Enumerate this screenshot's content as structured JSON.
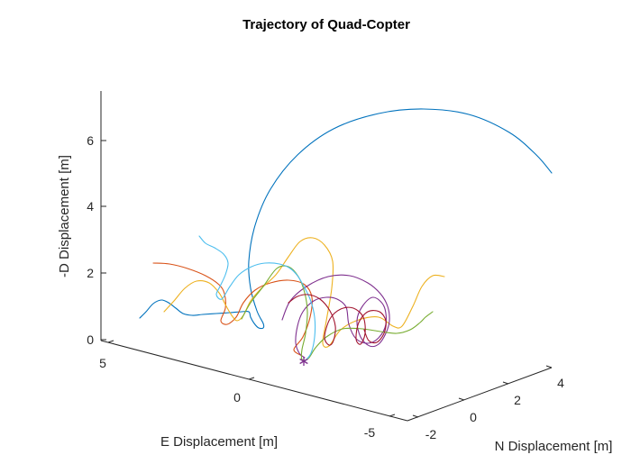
{
  "chart_data": {
    "type": "line3d",
    "title": "Trajectory of Quad-Copter",
    "xlabel": "E Displacement [m]",
    "ylabel": "N Displacement [m]",
    "zlabel": "-D Displacement [m]",
    "x_ticks": [
      "5",
      "0",
      "-5"
    ],
    "y_ticks": [
      "-2",
      "0",
      "2",
      "4"
    ],
    "z_ticks": [
      "0",
      "2",
      "4",
      "6"
    ],
    "zlim": [
      0,
      7.4
    ],
    "grid": false,
    "legend": "none",
    "marker": {
      "symbol": "*",
      "color": "#7E2F8E"
    },
    "series": [
      {
        "color": "#0072BD",
        "points": [
          [
            155,
            353
          ],
          [
            162,
            346
          ],
          [
            170,
            337
          ],
          [
            179,
            333
          ],
          [
            187,
            336
          ],
          [
            195,
            342
          ],
          [
            203,
            348
          ],
          [
            213,
            350
          ],
          [
            225,
            349
          ],
          [
            240,
            348
          ],
          [
            255,
            347
          ],
          [
            268,
            346
          ],
          [
            276,
            346
          ],
          [
            278,
            352
          ],
          [
            282,
            359
          ],
          [
            287,
            364
          ],
          [
            292,
            364
          ],
          [
            292,
            359
          ],
          [
            285,
            345
          ],
          [
            278,
            320
          ],
          [
            276,
            290
          ],
          [
            283,
            250
          ],
          [
            300,
            210
          ],
          [
            330,
            172
          ],
          [
            370,
            143
          ],
          [
            420,
            126
          ],
          [
            470,
            121
          ],
          [
            520,
            127
          ],
          [
            565,
            147
          ],
          [
            595,
            172
          ],
          [
            612,
            192
          ]
        ]
      },
      {
        "color": "#D95319",
        "points": [
          [
            170,
            292
          ],
          [
            188,
            293
          ],
          [
            208,
            298
          ],
          [
            228,
            306
          ],
          [
            243,
            316
          ],
          [
            249,
            326
          ],
          [
            250,
            342
          ],
          [
            245,
            356
          ],
          [
            252,
            360
          ],
          [
            262,
            352
          ],
          [
            270,
            336
          ],
          [
            283,
            322
          ],
          [
            300,
            314
          ],
          [
            320,
            311
          ],
          [
            338,
            316
          ],
          [
            346,
            330
          ],
          [
            344,
            352
          ],
          [
            336,
            374
          ],
          [
            326,
            388
          ],
          [
            335,
            395
          ]
        ]
      },
      {
        "color": "#EDB120",
        "points": [
          [
            182,
            346
          ],
          [
            193,
            334
          ],
          [
            205,
            320
          ],
          [
            218,
            312
          ],
          [
            232,
            314
          ],
          [
            243,
            325
          ],
          [
            250,
            338
          ],
          [
            257,
            350
          ],
          [
            263,
            356
          ],
          [
            270,
            350
          ],
          [
            278,
            334
          ],
          [
            290,
            320
          ],
          [
            306,
            305
          ],
          [
            320,
            285
          ],
          [
            333,
            268
          ],
          [
            347,
            264
          ],
          [
            360,
            272
          ],
          [
            369,
            290
          ],
          [
            368,
            320
          ],
          [
            362,
            356
          ],
          [
            358,
            381
          ],
          [
            365,
            384
          ],
          [
            378,
            366
          ],
          [
            398,
            355
          ],
          [
            420,
            352
          ],
          [
            436,
            362
          ],
          [
            446,
            362
          ],
          [
            458,
            340
          ],
          [
            468,
            318
          ],
          [
            480,
            306
          ],
          [
            493,
            307
          ]
        ]
      },
      {
        "color": "#7E2F8E",
        "points": [
          [
            313,
            355
          ],
          [
            322,
            334
          ],
          [
            340,
            318
          ],
          [
            364,
            307
          ],
          [
            388,
            306
          ],
          [
            408,
            314
          ],
          [
            422,
            326
          ],
          [
            430,
            340
          ],
          [
            432,
            356
          ],
          [
            428,
            370
          ],
          [
            420,
            382
          ],
          [
            410,
            384
          ],
          [
            400,
            374
          ],
          [
            396,
            356
          ],
          [
            402,
            340
          ],
          [
            414,
            330
          ],
          [
            426,
            340
          ],
          [
            428,
            360
          ],
          [
            420,
            375
          ],
          [
            408,
            381
          ],
          [
            395,
            376
          ],
          [
            387,
            360
          ],
          [
            384,
            341
          ],
          [
            374,
            332
          ],
          [
            362,
            330
          ],
          [
            348,
            334
          ],
          [
            336,
            346
          ],
          [
            330,
            362
          ],
          [
            328,
            380
          ],
          [
            332,
            392
          ],
          [
            338,
            397
          ]
        ]
      },
      {
        "color": "#77AC30",
        "points": [
          [
            268,
            354
          ],
          [
            278,
            336
          ],
          [
            292,
            318
          ],
          [
            307,
            298
          ],
          [
            320,
            296
          ],
          [
            331,
            307
          ],
          [
            338,
            325
          ],
          [
            341,
            346
          ],
          [
            339,
            370
          ],
          [
            335,
            388
          ],
          [
            335,
            399
          ],
          [
            342,
            398
          ],
          [
            350,
            386
          ],
          [
            362,
            374
          ],
          [
            380,
            365
          ],
          [
            402,
            365
          ],
          [
            422,
            368
          ],
          [
            440,
            370
          ],
          [
            455,
            366
          ],
          [
            466,
            358
          ],
          [
            472,
            352
          ],
          [
            480,
            346
          ]
        ]
      },
      {
        "color": "#4DBEEE",
        "points": [
          [
            221,
            262
          ],
          [
            228,
            270
          ],
          [
            238,
            275
          ],
          [
            248,
            282
          ],
          [
            253,
            292
          ],
          [
            250,
            305
          ],
          [
            244,
            318
          ],
          [
            240,
            327
          ],
          [
            246,
            332
          ],
          [
            255,
            318
          ],
          [
            265,
            305
          ],
          [
            279,
            296
          ],
          [
            294,
            292
          ],
          [
            310,
            293
          ],
          [
            322,
            298
          ],
          [
            330,
            306
          ],
          [
            336,
            316
          ],
          [
            344,
            332
          ],
          [
            349,
            352
          ],
          [
            349,
            374
          ],
          [
            345,
            392
          ],
          [
            338,
            401
          ]
        ]
      },
      {
        "color": "#A2142F",
        "points": [
          [
            320,
            336
          ],
          [
            330,
            329
          ],
          [
            342,
            327
          ],
          [
            355,
            332
          ],
          [
            366,
            345
          ],
          [
            372,
            362
          ],
          [
            370,
            378
          ],
          [
            365,
            383
          ],
          [
            360,
            374
          ],
          [
            366,
            354
          ],
          [
            378,
            343
          ],
          [
            392,
            342
          ],
          [
            403,
            352
          ],
          [
            405,
            370
          ],
          [
            400,
            382
          ],
          [
            395,
            376
          ],
          [
            398,
            358
          ],
          [
            408,
            346
          ],
          [
            421,
            346
          ],
          [
            428,
            356
          ],
          [
            426,
            370
          ],
          [
            418,
            380
          ],
          [
            409,
            378
          ],
          [
            404,
            366
          ]
        ]
      }
    ]
  }
}
